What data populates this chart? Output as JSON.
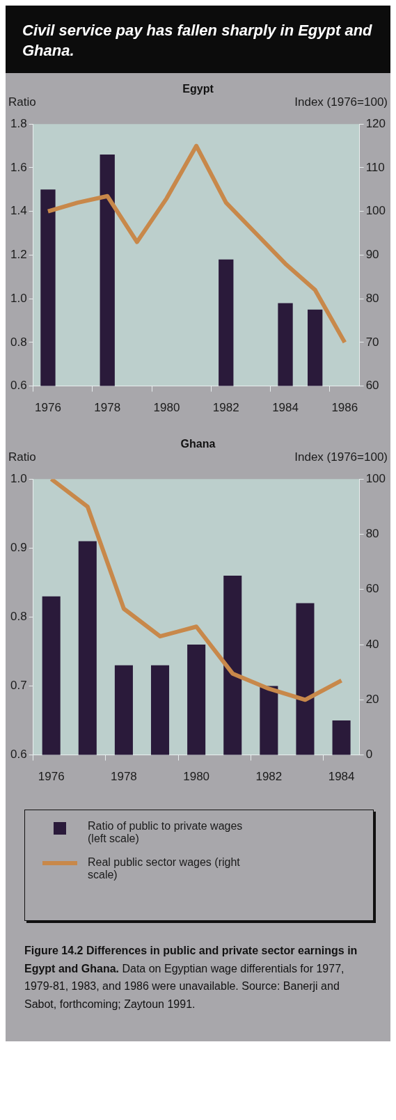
{
  "chart_data": [
    {
      "type": "bar",
      "title": "Civil service pay has fallen sharply in Egypt and Ghana.",
      "subtitle": "Egypt",
      "ylabel": "Ratio",
      "y2label": "Index (1976=100)",
      "categories": [
        "1976",
        null,
        "1978",
        null,
        "1980",
        null,
        "1982",
        null,
        "1984",
        null,
        "1986"
      ],
      "series": [
        {
          "color": "#2a1a3a",
          "values": [
            1.5,
            null,
            1.66,
            null,
            null,
            null,
            1.18,
            null,
            0.98,
            0.95,
            null
          ]
        },
        {
          "type": "line",
          "axis": "y2",
          "color": "#c8884a",
          "values": [
            100,
            102,
            103.5,
            93,
            103,
            115,
            102,
            95,
            88,
            82,
            70
          ]
        }
      ],
      "ylim": [
        0.6,
        1.8
      ],
      "yticks": [
        0.6,
        0.8,
        {
          "value": 1,
          "label": "1.0"
        },
        1.2,
        1.4,
        1.6,
        1.8
      ],
      "y2lim": [
        60,
        120
      ],
      "y2ticks": [
        60,
        70,
        80,
        90,
        100,
        110,
        120
      ],
      "grid": false
    },
    {
      "type": "bar",
      "title": "Ghana",
      "ylabel": "Ratio",
      "y2label": "Index (1976=100)",
      "categories": [
        "1976",
        null,
        "1978",
        null,
        "1980",
        null,
        "1982",
        null,
        "1984"
      ],
      "series": [
        {
          "name": "Ratio of public to private wages (left scale)",
          "color": "#2a1a3a",
          "values": [
            0.83,
            0.91,
            0.73,
            0.73,
            0.76,
            0.86,
            0.7,
            0.82,
            0.65
          ]
        },
        {
          "type": "line",
          "axis": "y2",
          "name": "Real public sector wages (right scale)",
          "color": "#c8884a",
          "values": [
            100,
            90,
            53,
            43,
            46.5,
            29.5,
            24,
            20,
            27
          ]
        }
      ],
      "ylim": [
        0.6,
        1.0
      ],
      "yticks": [
        0.6,
        0.7,
        0.8,
        0.9,
        {
          "value": 1,
          "label": "1.0"
        }
      ],
      "y2lim": [
        0,
        100
      ],
      "y2ticks": [
        0,
        20,
        40,
        60,
        80,
        100
      ],
      "grid": false,
      "legend": "bottom",
      "annotations": [
        "Figure 14.2 Differences in public and private sector earnings in Egypt and Ghana.",
        "Data on Egyptian wage differentials for 1977, 1979-81, 1983, and 1986 were unavailable. Source: Banerji and Sabot, forthcoming; Zaytoun 1991."
      ]
    }
  ]
}
